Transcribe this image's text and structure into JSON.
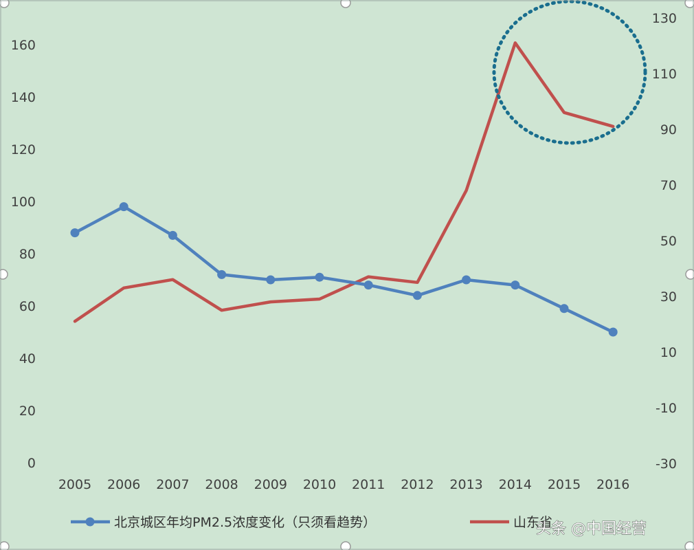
{
  "chart_data": {
    "type": "line",
    "categories": [
      "2005",
      "2006",
      "2007",
      "2008",
      "2009",
      "2010",
      "2011",
      "2012",
      "2013",
      "2014",
      "2015",
      "2016"
    ],
    "y_left": {
      "ylim": [
        0,
        170
      ],
      "ticks": [
        0,
        20,
        40,
        60,
        80,
        100,
        120,
        140,
        160
      ]
    },
    "y_right": {
      "ylim": [
        -30,
        130
      ],
      "ticks": [
        -30,
        -10,
        10,
        30,
        50,
        70,
        90,
        110,
        130
      ]
    },
    "series": [
      {
        "name": "北京城区年均PM2.5浓度变化（只须看趋势）",
        "axis": "left",
        "color": "#4f81bd",
        "marker": "circle",
        "values": [
          88,
          98,
          87,
          72,
          70,
          71,
          68,
          64,
          70,
          68,
          59,
          50
        ]
      },
      {
        "name": "山东省",
        "axis": "right",
        "color": "#c0504d",
        "marker": "none",
        "values": [
          21,
          33,
          36,
          25,
          28,
          29,
          37,
          35,
          68,
          121,
          96,
          91
        ]
      }
    ],
    "legend_position": "bottom",
    "grid": false,
    "annotation": {
      "shape": "dotted-circle",
      "color": "#1a6e8e",
      "around_categories": [
        "2014",
        "2016"
      ]
    },
    "watermark": "头条 @中国经营"
  }
}
